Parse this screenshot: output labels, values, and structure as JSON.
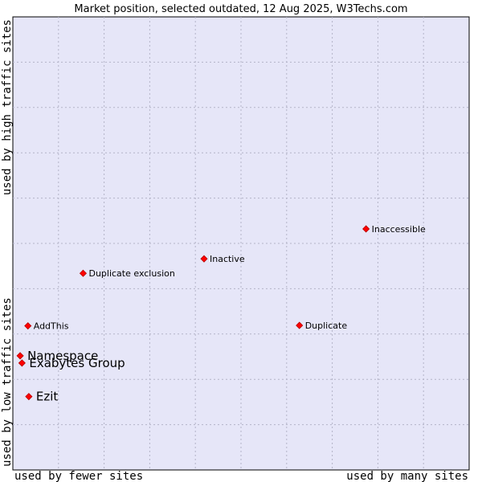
{
  "chart_data": {
    "type": "scatter",
    "title": "Market position, selected outdated, 12 Aug 2025, W3Techs.com",
    "xlabel_left": "used by fewer sites",
    "xlabel_right": "used by many sites",
    "ylabel_bottom": "used by low traffic sites",
    "ylabel_top": "used by high traffic sites",
    "xlim": [
      0,
      100
    ],
    "ylim": [
      0,
      100
    ],
    "grid": true,
    "colors": {
      "background": "#e6e6f8",
      "grid": "#b4b4c8",
      "marker": "#ff0000",
      "marker_edge": "#b40000"
    },
    "points": [
      {
        "label": "Inaccessible",
        "x": 77.4,
        "y": 53.2,
        "emphasis": false
      },
      {
        "label": "Inactive",
        "x": 41.9,
        "y": 46.6,
        "emphasis": false
      },
      {
        "label": "Duplicate exclusion",
        "x": 15.4,
        "y": 43.4,
        "emphasis": false
      },
      {
        "label": "AddThis",
        "x": 3.3,
        "y": 31.8,
        "emphasis": false
      },
      {
        "label": "Duplicate",
        "x": 62.8,
        "y": 31.9,
        "emphasis": false
      },
      {
        "label": "Namespace",
        "x": 1.6,
        "y": 25.2,
        "emphasis": true
      },
      {
        "label": "Exabytes Group",
        "x": 2.0,
        "y": 23.6,
        "emphasis": true
      },
      {
        "label": "Ezit",
        "x": 3.5,
        "y": 16.2,
        "emphasis": true
      }
    ]
  }
}
